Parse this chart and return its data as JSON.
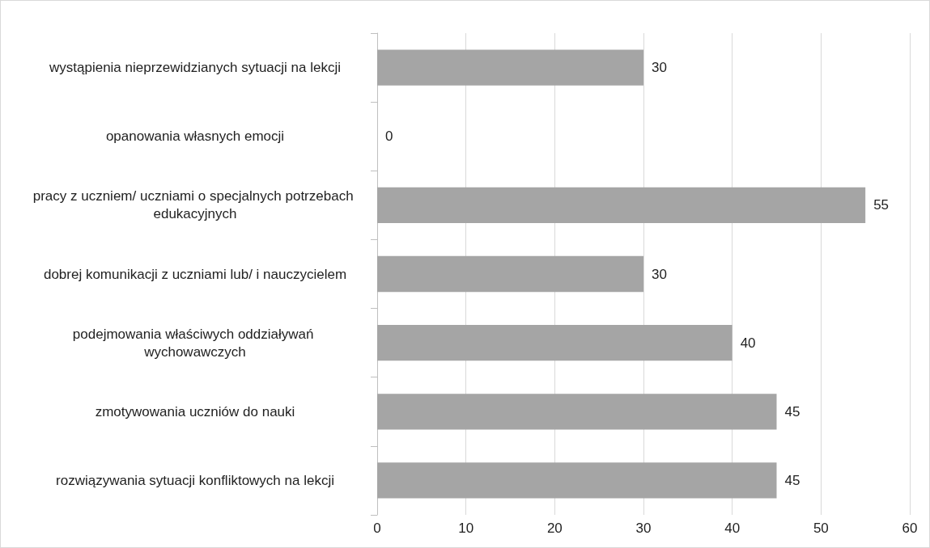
{
  "chart_data": {
    "type": "bar",
    "orientation": "horizontal",
    "categories": [
      "wystąpienia nieprzewidzianych sytuacji na lekcji",
      "opanowania własnych emocji",
      "pracy z uczniem/ uczniami o specjalnych potrzebach edukacyjnych",
      "dobrej komunikacji z uczniami lub/ i nauczycielem",
      "podejmowania właściwych oddziaływań wychowawczych",
      "zmotywowania uczniów do nauki",
      "rozwiązywania sytuacji konfliktowych na lekcji"
    ],
    "values": [
      30,
      0,
      55,
      30,
      40,
      45,
      45
    ],
    "color": "#a5a5a5",
    "xlim": [
      0,
      60
    ],
    "xticks": [
      0,
      10,
      20,
      30,
      40,
      50,
      60
    ],
    "grid": "x",
    "data_labels": true
  }
}
